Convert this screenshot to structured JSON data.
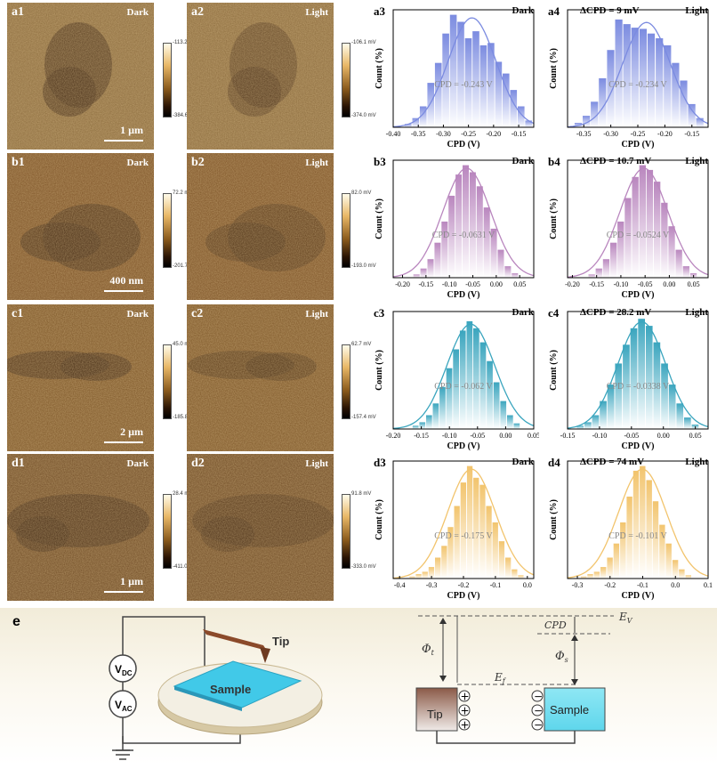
{
  "rows": [
    {
      "id": "a",
      "scale_bar": "1 µm",
      "dark": {
        "label": "a1",
        "cond": "Dark",
        "cbar_max": "-113.2 mV",
        "cbar_min": "-384.6 mV"
      },
      "light": {
        "label": "a2",
        "cond": "Light",
        "cbar_max": "-106.1 mV",
        "cbar_min": "-374.0 mV"
      },
      "hist_dark": {
        "label": "a3",
        "cond": "Dark",
        "delta": "",
        "cpd": "CPD = -0.243 V"
      },
      "hist_light": {
        "label": "a4",
        "cond": "Light",
        "delta": "ΔCPD = 9 mV",
        "cpd": "CPD = -0.234 V"
      }
    },
    {
      "id": "b",
      "scale_bar": "400 nm",
      "dark": {
        "label": "b1",
        "cond": "Dark",
        "cbar_max": "72.2 mV",
        "cbar_min": "-201.7 mV"
      },
      "light": {
        "label": "b2",
        "cond": "Light",
        "cbar_max": "82.0 mV",
        "cbar_min": "-193.0 mV"
      },
      "hist_dark": {
        "label": "b3",
        "cond": "Dark",
        "delta": "",
        "cpd": "CPD = -0.0631 V"
      },
      "hist_light": {
        "label": "b4",
        "cond": "Light",
        "delta": "ΔCPD = 10.7 mV",
        "cpd": "CPD = -0.0524 V"
      }
    },
    {
      "id": "c",
      "scale_bar": "2 µm",
      "dark": {
        "label": "c1",
        "cond": "Dark",
        "cbar_max": "45.0 mV",
        "cbar_min": "-185.8 mV"
      },
      "light": {
        "label": "c2",
        "cond": "Light",
        "cbar_max": "62.7 mV",
        "cbar_min": "-157.4 mV"
      },
      "hist_dark": {
        "label": "c3",
        "cond": "Dark",
        "delta": "",
        "cpd": "CPD = -0.062 V"
      },
      "hist_light": {
        "label": "c4",
        "cond": "Light",
        "delta": "ΔCPD = 28.2 mV",
        "cpd": "CPD = -0.0338 V"
      }
    },
    {
      "id": "d",
      "scale_bar": "1 µm",
      "dark": {
        "label": "d1",
        "cond": "Dark",
        "cbar_max": "28.4 mV",
        "cbar_min": "-411.0 mV"
      },
      "light": {
        "label": "d2",
        "cond": "Light",
        "cbar_max": "91.8 mV",
        "cbar_min": "-333.0 mV"
      },
      "hist_dark": {
        "label": "d3",
        "cond": "Dark",
        "delta": "",
        "cpd": "CPD = -0.175 V"
      },
      "hist_light": {
        "label": "d4",
        "cond": "Light",
        "delta": "ΔCPD = 74 mV",
        "cpd": "CPD = -0.101 V"
      }
    }
  ],
  "hist_axes": {
    "xlabel": "CPD (V)",
    "ylabel": "Count (%)"
  },
  "chart_data": [
    {
      "type": "bar",
      "panel": "a3",
      "color": "#7b8be0",
      "xlabel": "CPD (V)",
      "ylabel": "Count (%)",
      "xlim": [
        -0.4,
        -0.12
      ],
      "x_ticks": [
        "-0.40",
        "-0.35",
        "-0.30",
        "-0.25",
        "-0.20",
        "-0.15"
      ],
      "x": [
        -0.37,
        -0.355,
        -0.34,
        -0.325,
        -0.31,
        -0.295,
        -0.28,
        -0.265,
        -0.25,
        -0.235,
        -0.22,
        -0.205,
        -0.19,
        -0.175,
        -0.16,
        -0.145,
        -0.13
      ],
      "values": [
        3,
        8,
        18,
        38,
        55,
        80,
        96,
        90,
        76,
        82,
        70,
        72,
        56,
        46,
        32,
        18,
        6
      ],
      "fit_center": -0.243
    },
    {
      "type": "bar",
      "panel": "a4",
      "color": "#7b8be0",
      "xlabel": "CPD (V)",
      "ylabel": "Count (%)",
      "xlim": [
        -0.38,
        -0.12
      ],
      "x_ticks": [
        "-0.35",
        "-0.30",
        "-0.25",
        "-0.20",
        "-0.15"
      ],
      "x": [
        -0.36,
        -0.345,
        -0.33,
        -0.315,
        -0.3,
        -0.285,
        -0.27,
        -0.255,
        -0.24,
        -0.225,
        -0.21,
        -0.195,
        -0.18,
        -0.165,
        -0.15,
        -0.135
      ],
      "values": [
        4,
        10,
        22,
        42,
        66,
        92,
        88,
        85,
        84,
        80,
        76,
        70,
        55,
        40,
        20,
        8
      ],
      "fit_center": -0.234
    },
    {
      "type": "bar",
      "panel": "b3",
      "color": "#b986be",
      "xlabel": "CPD (V)",
      "ylabel": "Count (%)",
      "xlim": [
        -0.22,
        0.08
      ],
      "x_ticks": [
        "-0.20",
        "-0.15",
        "-0.10",
        "-0.05",
        "0.00",
        "0.05"
      ],
      "x": [
        -0.17,
        -0.155,
        -0.14,
        -0.125,
        -0.11,
        -0.095,
        -0.08,
        -0.065,
        -0.05,
        -0.035,
        -0.02,
        -0.005,
        0.01,
        0.025,
        0.04
      ],
      "values": [
        3,
        8,
        16,
        30,
        48,
        70,
        88,
        96,
        90,
        78,
        60,
        42,
        24,
        10,
        4
      ],
      "fit_center": -0.0631
    },
    {
      "type": "bar",
      "panel": "b4",
      "color": "#b986be",
      "xlabel": "CPD (V)",
      "ylabel": "Count (%)",
      "xlim": [
        -0.21,
        0.08
      ],
      "x_ticks": [
        "-0.20",
        "-0.15",
        "-0.10",
        "-0.05",
        "0.00",
        "0.05"
      ],
      "x": [
        -0.16,
        -0.145,
        -0.13,
        -0.115,
        -0.1,
        -0.085,
        -0.07,
        -0.055,
        -0.04,
        -0.025,
        -0.01,
        0.005,
        0.02,
        0.035,
        0.05
      ],
      "values": [
        3,
        8,
        16,
        30,
        48,
        68,
        86,
        96,
        92,
        82,
        64,
        44,
        24,
        10,
        4
      ],
      "fit_center": -0.0524
    },
    {
      "type": "bar",
      "panel": "c3",
      "color": "#3aa5be",
      "xlabel": "CPD (V)",
      "ylabel": "Count (%)",
      "xlim": [
        -0.2,
        0.05
      ],
      "x_ticks": [
        "-0.20",
        "-0.15",
        "-0.10",
        "-0.05",
        "0.00",
        "0.05"
      ],
      "x": [
        -0.16,
        -0.148,
        -0.136,
        -0.124,
        -0.112,
        -0.1,
        -0.088,
        -0.076,
        -0.064,
        -0.052,
        -0.04,
        -0.028,
        -0.016,
        -0.004,
        0.008,
        0.02
      ],
      "values": [
        3,
        6,
        12,
        22,
        36,
        52,
        68,
        84,
        92,
        86,
        74,
        58,
        40,
        24,
        12,
        5
      ],
      "fit_center": -0.062
    },
    {
      "type": "bar",
      "panel": "c4",
      "color": "#3aa5be",
      "xlabel": "CPD (V)",
      "ylabel": "Count (%)",
      "xlim": [
        -0.15,
        0.07
      ],
      "x_ticks": [
        "-0.15",
        "-0.10",
        "-0.05",
        "0.00",
        "0.05"
      ],
      "x": [
        -0.13,
        -0.118,
        -0.106,
        -0.094,
        -0.082,
        -0.07,
        -0.058,
        -0.046,
        -0.034,
        -0.022,
        -0.01,
        0.002,
        0.014,
        0.026,
        0.038,
        0.05
      ],
      "values": [
        3,
        6,
        12,
        24,
        38,
        56,
        72,
        86,
        94,
        88,
        74,
        56,
        38,
        22,
        10,
        4
      ],
      "fit_center": -0.0338
    },
    {
      "type": "bar",
      "panel": "d3",
      "color": "#f2c46d",
      "xlabel": "CPD (V)",
      "ylabel": "Count (%)",
      "xlim": [
        -0.42,
        0.02
      ],
      "x_ticks": [
        "-0.4",
        "-0.3",
        "-0.2",
        "-0.1",
        "0.0"
      ],
      "x": [
        -0.36,
        -0.34,
        -0.32,
        -0.3,
        -0.28,
        -0.26,
        -0.24,
        -0.22,
        -0.2,
        -0.18,
        -0.16,
        -0.14,
        -0.12,
        -0.1,
        -0.08,
        -0.06,
        -0.04,
        -0.02
      ],
      "values": [
        2,
        4,
        6,
        10,
        18,
        28,
        44,
        62,
        82,
        96,
        86,
        80,
        62,
        48,
        32,
        18,
        8,
        3
      ],
      "fit_center": -0.175
    },
    {
      "type": "bar",
      "panel": "d4",
      "color": "#f2c46d",
      "xlabel": "CPD (V)",
      "ylabel": "Count (%)",
      "xlim": [
        -0.33,
        0.1
      ],
      "x_ticks": [
        "-0.3",
        "-0.2",
        "-0.1",
        "0.0",
        "0.1"
      ],
      "x": [
        -0.28,
        -0.26,
        -0.24,
        -0.22,
        -0.2,
        -0.18,
        -0.16,
        -0.14,
        -0.12,
        -0.1,
        -0.08,
        -0.06,
        -0.04,
        -0.02,
        0.0,
        0.02,
        0.04
      ],
      "values": [
        2,
        4,
        6,
        10,
        18,
        30,
        48,
        70,
        92,
        96,
        84,
        66,
        46,
        30,
        16,
        8,
        3
      ],
      "fit_center": -0.101
    }
  ],
  "schematic": {
    "panel_label": "e",
    "vdc_sub": "DC",
    "vac_sub": "AC",
    "v_letter": "V",
    "tip": "Tip",
    "sample": "Sample",
    "ev": "E",
    "ev_sub": "V",
    "ef": "E",
    "ef_sub": "f",
    "phi_t": "Φ",
    "phi_t_sub": "t",
    "phi_s": "Φ",
    "phi_s_sub": "s",
    "cpd": "CPD",
    "tip_box": "Tip",
    "sample_box": "Sample",
    "plus": "+",
    "minus": "−"
  }
}
